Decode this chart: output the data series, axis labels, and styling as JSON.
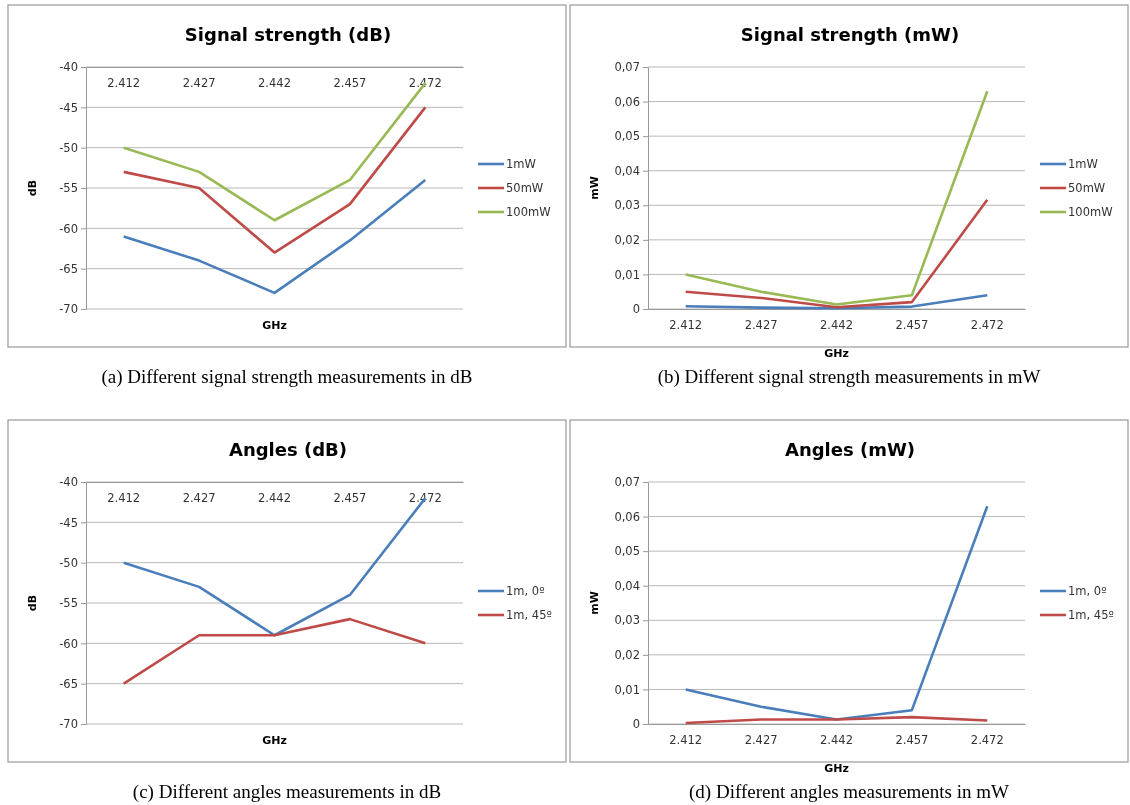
{
  "chart_data": [
    {
      "type": "line",
      "title": "Signal strength (dB)",
      "xlabel": "GHz",
      "ylabel": "dB",
      "categories": [
        "2.412",
        "2.427",
        "2.442",
        "2.457",
        "2.472"
      ],
      "ylim": [
        -70,
        -40
      ],
      "yticks": [
        -70,
        -65,
        -60,
        -55,
        -50,
        -45,
        -40
      ],
      "grid": "y",
      "legend": "right",
      "annotations": [
        "(a)  Different signal strength measurements in dB"
      ],
      "series": [
        {
          "name": "1mW",
          "color": "#4a7ebb",
          "values": [
            -61,
            -64,
            -68,
            -61.5,
            -54
          ]
        },
        {
          "name": "50mW",
          "color": "#be4b48",
          "values": [
            -53,
            -55,
            -63,
            -57,
            -45
          ]
        },
        {
          "name": "100mW",
          "color": "#98b954",
          "values": [
            -50,
            -53,
            -59,
            -54,
            -42
          ]
        }
      ]
    },
    {
      "type": "line",
      "title": "Signal strength (mW)",
      "xlabel": "GHz",
      "ylabel": "mW",
      "categories": [
        "2.412",
        "2.427",
        "2.442",
        "2.457",
        "2.472"
      ],
      "ylim": [
        0,
        0.07
      ],
      "yticks": [
        0,
        {
          "value": 0.01,
          "label": "0,01"
        },
        {
          "value": 0.02,
          "label": "0,02"
        },
        {
          "value": 0.03,
          "label": "0,03"
        },
        {
          "value": 0.04,
          "label": "0,04"
        },
        {
          "value": 0.05,
          "label": "0,05"
        },
        {
          "value": 0.06,
          "label": "0,06"
        },
        {
          "value": 0.07,
          "label": "0,07"
        }
      ],
      "grid": "y",
      "legend": "right",
      "annotations": [
        "(b)  Different signal strength measurements in mW"
      ],
      "series": [
        {
          "name": "1mW",
          "color": "#4a7ebb",
          "values": [
            0.0008,
            0.0004,
            0.0002,
            0.0007,
            0.004
          ]
        },
        {
          "name": "50mW",
          "color": "#be4b48",
          "values": [
            0.005,
            0.0032,
            0.0005,
            0.002,
            0.0316
          ]
        },
        {
          "name": "100mW",
          "color": "#98b954",
          "values": [
            0.01,
            0.005,
            0.0013,
            0.004,
            0.063
          ]
        }
      ]
    },
    {
      "type": "line",
      "title": "Angles (dB)",
      "xlabel": "GHz",
      "ylabel": "dB",
      "categories": [
        "2.412",
        "2.427",
        "2.442",
        "2.457",
        "2.472"
      ],
      "ylim": [
        -70,
        -40
      ],
      "yticks": [
        -70,
        -65,
        -60,
        -55,
        -50,
        -45,
        -40
      ],
      "grid": "y",
      "legend": "right",
      "annotations": [
        "(c)  Different angles measurements in dB"
      ],
      "series": [
        {
          "name": "1m, 0º",
          "color": "#4a7ebb",
          "values": [
            -50,
            -53,
            -59,
            -54,
            -42
          ]
        },
        {
          "name": "1m, 45º",
          "color": "#be4b48",
          "values": [
            -65,
            -59,
            -59,
            -57,
            -60
          ]
        }
      ]
    },
    {
      "type": "line",
      "title": "Angles (mW)",
      "xlabel": "GHz",
      "ylabel": "mW",
      "categories": [
        "2.412",
        "2.427",
        "2.442",
        "2.457",
        "2.472"
      ],
      "ylim": [
        0,
        0.07
      ],
      "yticks": [
        0,
        {
          "value": 0.01,
          "label": "0,01"
        },
        {
          "value": 0.02,
          "label": "0,02"
        },
        {
          "value": 0.03,
          "label": "0,03"
        },
        {
          "value": 0.04,
          "label": "0,04"
        },
        {
          "value": 0.05,
          "label": "0,05"
        },
        {
          "value": 0.06,
          "label": "0,06"
        },
        {
          "value": 0.07,
          "label": "0,07"
        }
      ],
      "grid": "y",
      "legend": "right",
      "annotations": [
        "(d)  Different angles measurements in mW"
      ],
      "series": [
        {
          "name": "1m, 0º",
          "color": "#4a7ebb",
          "values": [
            0.01,
            0.005,
            0.0013,
            0.004,
            0.063
          ]
        },
        {
          "name": "1m, 45º",
          "color": "#be4b48",
          "values": [
            0.0003,
            0.0013,
            0.0013,
            0.002,
            0.001
          ]
        }
      ]
    }
  ]
}
